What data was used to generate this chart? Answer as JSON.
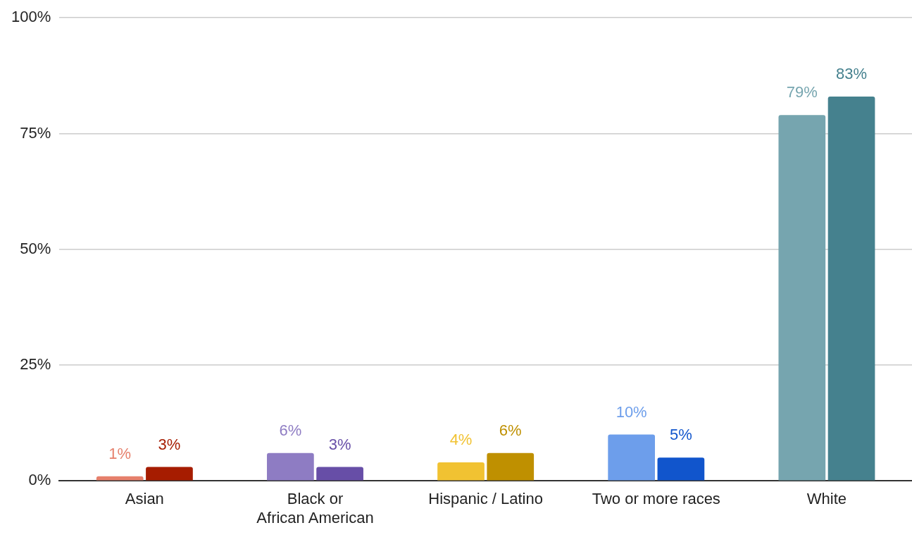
{
  "chart_data": {
    "type": "bar",
    "categories": [
      "Asian",
      "Black or African American",
      "Hispanic / Latino",
      "Two or more races",
      "White"
    ],
    "series": [
      {
        "colors": [
          "#e6806c",
          "#8e7cc3",
          "#f1c232",
          "#6d9eeb",
          "#76a5af"
        ],
        "values": [
          1,
          6,
          4,
          10,
          79
        ],
        "value_labels": [
          "1%",
          "6%",
          "4%",
          "10%",
          "79%"
        ]
      },
      {
        "colors": [
          "#a61c00",
          "#674ea7",
          "#bf9000",
          "#1155cc",
          "#45818e"
        ],
        "values": [
          3,
          3,
          6,
          5,
          83
        ],
        "value_labels": [
          "3%",
          "3%",
          "6%",
          "5%",
          "83%"
        ]
      }
    ],
    "ylim": [
      0,
      100
    ],
    "yticks": [
      {
        "value": 0,
        "label": "0%"
      },
      {
        "value": 25,
        "label": "25%"
      },
      {
        "value": 50,
        "label": "50%"
      },
      {
        "value": 75,
        "label": "75%"
      },
      {
        "value": 100,
        "label": "100%"
      }
    ],
    "grid": "y"
  }
}
